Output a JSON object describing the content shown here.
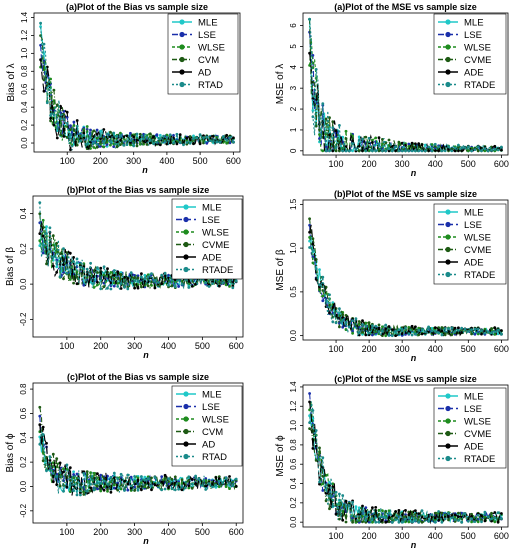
{
  "legend_swatch_colors": [
    "#20c8c8",
    "#1a2faa",
    "#1e8c1e",
    "#1e5a14",
    "#000000",
    "#1a8a8a"
  ],
  "panels": [
    {
      "id": "bias-lambda",
      "title": "(a)Plot of the Bias vs sample size",
      "xlabel": "n",
      "ylabel": "Bias of λ",
      "xlim": [
        0,
        620
      ],
      "ylim": [
        -0.1,
        1.45
      ],
      "xticks": [
        "100",
        "200",
        "300",
        "400",
        "500",
        "600"
      ],
      "xtick_values": [
        100,
        200,
        300,
        400,
        500,
        600
      ],
      "yticks": [
        "0.0",
        "0.2",
        "0.4",
        "0.6",
        "0.8",
        "1.0",
        "1.2",
        "1.4"
      ],
      "ytick_values": [
        0.0,
        0.2,
        0.4,
        0.6,
        0.8,
        1.0,
        1.2,
        1.4
      ],
      "legend": [
        "MLE",
        "LSE",
        "WLSE",
        "CVM",
        "AD",
        "RTAD"
      ],
      "series_model": {
        "n_start": 20,
        "n_end": 600,
        "n_step": 5,
        "start_level": 1.1,
        "end_level": 0.04,
        "decay": 35,
        "noise": 0.22,
        "noise_floor": 0.15,
        "min": -0.08,
        "max": 1.35
      }
    },
    {
      "id": "mse-lambda",
      "title": "(a)Plot of the MSE vs sample size",
      "xlabel": "n",
      "ylabel": "MSE of λ",
      "xlim": [
        0,
        620
      ],
      "ylim": [
        -0.2,
        6.6
      ],
      "xticks": [
        "100",
        "200",
        "300",
        "400",
        "500",
        "600"
      ],
      "xtick_values": [
        100,
        200,
        300,
        400,
        500,
        600
      ],
      "yticks": [
        "0",
        "1",
        "2",
        "3",
        "4",
        "5",
        "6"
      ],
      "ytick_values": [
        0,
        1,
        2,
        3,
        4,
        5,
        6
      ],
      "legend": [
        "MLE",
        "LSE",
        "WLSE",
        "CVME",
        "ADE",
        "RTADE"
      ],
      "series_model": {
        "n_start": 20,
        "n_end": 600,
        "n_step": 5,
        "start_level": 5.5,
        "end_level": 0.08,
        "decay": 20,
        "noise": 1.6,
        "noise_floor": 0.05,
        "min": 0.0,
        "max": 6.3
      }
    },
    {
      "id": "bias-beta",
      "title": "(b)Plot of the Bias vs sample size",
      "xlabel": "n",
      "ylabel": "Bias of β",
      "xlim": [
        0,
        620
      ],
      "ylim": [
        -0.3,
        0.5
      ],
      "xticks": [
        "100",
        "200",
        "300",
        "400",
        "500",
        "600"
      ],
      "xtick_values": [
        100,
        200,
        300,
        400,
        500,
        600
      ],
      "yticks": [
        "-0.2",
        "0.0",
        "0.2",
        "0.4"
      ],
      "ytick_values": [
        -0.2,
        0.0,
        0.2,
        0.4
      ],
      "legend": [
        "MLE",
        "LSE",
        "WLSE",
        "CVME",
        "ADE",
        "RTADE"
      ],
      "series_model": {
        "n_start": 20,
        "n_end": 600,
        "n_step": 5,
        "start_level": 0.32,
        "end_level": 0.02,
        "decay": 60,
        "noise": 0.08,
        "noise_floor": 0.35,
        "min": -0.2,
        "max": 0.48
      }
    },
    {
      "id": "mse-beta",
      "title": "(b)Plot of the MSE vs sample size",
      "xlabel": "n",
      "ylabel": "MSE of β",
      "xlim": [
        0,
        620
      ],
      "ylim": [
        -0.05,
        1.55
      ],
      "xticks": [
        "100",
        "200",
        "300",
        "400",
        "500",
        "600"
      ],
      "xtick_values": [
        100,
        200,
        300,
        400,
        500,
        600
      ],
      "yticks": [
        "0.0",
        "0.5",
        "1.0",
        "1.5"
      ],
      "ytick_values": [
        0.0,
        0.5,
        1.0,
        1.5
      ],
      "legend": [
        "MLE",
        "LSE",
        "WLSE",
        "CVME",
        "ADE",
        "RTADE"
      ],
      "series_model": {
        "n_start": 20,
        "n_end": 600,
        "n_step": 5,
        "start_level": 1.2,
        "end_level": 0.05,
        "decay": 45,
        "noise": 0.12,
        "noise_floor": 0.25,
        "min": 0.0,
        "max": 1.5
      }
    },
    {
      "id": "bias-phi",
      "title": "(c)Plot of the Bias vs sample size",
      "xlabel": "n",
      "ylabel": "Bias of ϕ",
      "xlim": [
        0,
        620
      ],
      "ylim": [
        -0.3,
        0.85
      ],
      "xticks": [
        "100",
        "200",
        "300",
        "400",
        "500",
        "600"
      ],
      "xtick_values": [
        100,
        200,
        300,
        400,
        500,
        600
      ],
      "yticks": [
        "-0.2",
        "0.0",
        "0.2",
        "0.4",
        "0.6",
        "0.8"
      ],
      "ytick_values": [
        -0.2,
        0.0,
        0.2,
        0.4,
        0.6,
        0.8
      ],
      "legend": [
        "MLE",
        "LSE",
        "WLSE",
        "CVM",
        "AD",
        "RTAD"
      ],
      "series_model": {
        "n_start": 20,
        "n_end": 600,
        "n_step": 5,
        "start_level": 0.5,
        "end_level": 0.03,
        "decay": 25,
        "noise": 0.1,
        "noise_floor": 0.4,
        "min": -0.2,
        "max": 0.65
      }
    },
    {
      "id": "mse-phi",
      "title": "(c)Plot of the MSE vs sample size",
      "xlabel": "n",
      "ylabel": "MSE of ϕ",
      "xlim": [
        0,
        620
      ],
      "ylim": [
        -0.05,
        1.42
      ],
      "xticks": [
        "100",
        "200",
        "300",
        "400",
        "500",
        "600"
      ],
      "xtick_values": [
        100,
        200,
        300,
        400,
        500,
        600
      ],
      "yticks": [
        "0.0",
        "0.2",
        "0.4",
        "0.6",
        "0.8",
        "1.0",
        "1.2",
        "1.4"
      ],
      "ytick_values": [
        0.0,
        0.2,
        0.4,
        0.6,
        0.8,
        1.0,
        1.2,
        1.4
      ],
      "legend": [
        "MLE",
        "LSE",
        "WLSE",
        "CVME",
        "ADE",
        "RTADE"
      ],
      "series_model": {
        "n_start": 20,
        "n_end": 600,
        "n_step": 5,
        "start_level": 1.2,
        "end_level": 0.05,
        "decay": 40,
        "noise": 0.15,
        "noise_floor": 0.25,
        "min": 0.0,
        "max": 1.38
      }
    }
  ],
  "chart_data": [
    {
      "type": "line",
      "title": "(a)Plot of the Bias vs sample size",
      "xlabel": "n",
      "ylabel": "Bias of λ",
      "ylim": [
        -0.1,
        1.45
      ],
      "series_names": [
        "MLE",
        "LSE",
        "WLSE",
        "CVM",
        "AD",
        "RTAD"
      ],
      "x_range": [
        20,
        600
      ],
      "approx_trend": "decreasing from about 1.1 at n=20 to about 0.04 at n=600"
    },
    {
      "type": "line",
      "title": "(a)Plot of the MSE vs sample size",
      "xlabel": "n",
      "ylabel": "MSE of λ",
      "ylim": [
        -0.2,
        6.6
      ],
      "series_names": [
        "MLE",
        "LSE",
        "WLSE",
        "CVME",
        "ADE",
        "RTADE"
      ],
      "x_range": [
        20,
        600
      ],
      "approx_trend": "decreasing from about 5.5 at n=20 to about 0.08 at n=600"
    },
    {
      "type": "line",
      "title": "(b)Plot of the Bias vs sample size",
      "xlabel": "n",
      "ylabel": "Bias of β",
      "ylim": [
        -0.3,
        0.5
      ],
      "series_names": [
        "MLE",
        "LSE",
        "WLSE",
        "CVME",
        "ADE",
        "RTADE"
      ],
      "x_range": [
        20,
        600
      ],
      "approx_trend": "decreasing from about 0.32 at n=20 to about 0.02 at n=600"
    },
    {
      "type": "line",
      "title": "(b)Plot of the MSE vs sample size",
      "xlabel": "n",
      "ylabel": "MSE of β",
      "ylim": [
        -0.05,
        1.55
      ],
      "series_names": [
        "MLE",
        "LSE",
        "WLSE",
        "CVME",
        "ADE",
        "RTADE"
      ],
      "x_range": [
        20,
        600
      ],
      "approx_trend": "decreasing from about 1.2 at n=20 to about 0.05 at n=600"
    },
    {
      "type": "line",
      "title": "(c)Plot of the Bias vs sample size",
      "xlabel": "n",
      "ylabel": "Bias of ϕ",
      "ylim": [
        -0.3,
        0.85
      ],
      "series_names": [
        "MLE",
        "LSE",
        "WLSE",
        "CVM",
        "AD",
        "RTAD"
      ],
      "x_range": [
        20,
        600
      ],
      "approx_trend": "decreasing from about 0.5 at n=20 to about 0.03 at n=600"
    },
    {
      "type": "line",
      "title": "(c)Plot of the MSE vs sample size",
      "xlabel": "n",
      "ylabel": "MSE of ϕ",
      "ylim": [
        -0.05,
        1.42
      ],
      "series_names": [
        "MLE",
        "LSE",
        "WLSE",
        "CVME",
        "ADE",
        "RTADE"
      ],
      "x_range": [
        20,
        600
      ],
      "approx_trend": "decreasing from about 1.2 at n=20 to about 0.05 at n=600"
    }
  ]
}
